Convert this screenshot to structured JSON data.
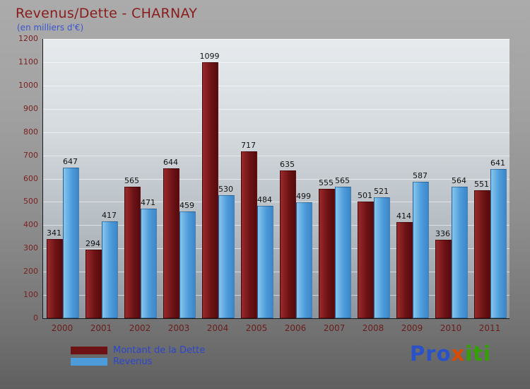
{
  "chart_data": {
    "type": "bar",
    "title": "Revenus/Dette - CHARNAY",
    "subtitle": "(en milliers d'€)",
    "categories": [
      "2000",
      "2001",
      "2002",
      "2003",
      "2004",
      "2005",
      "2006",
      "2007",
      "2008",
      "2009",
      "2010",
      "2011"
    ],
    "series": [
      {
        "name": "Montant de la Dette",
        "color_start": "#9a2a2c",
        "color_end": "#540b0e",
        "swatch": "#6e1315",
        "values": [
          341,
          294,
          565,
          644,
          1099,
          717,
          635,
          555,
          501,
          414,
          336,
          551
        ]
      },
      {
        "name": "Revenus",
        "color_start": "#85c6ef",
        "color_end": "#3b86c9",
        "swatch": "#4e9bd9",
        "values": [
          647,
          417,
          471,
          459,
          530,
          484,
          499,
          565,
          521,
          587,
          564,
          641
        ]
      }
    ],
    "xlabel": "",
    "ylabel": "",
    "ylim": [
      0,
      1200
    ],
    "ytick_step": 100,
    "grid": true,
    "legend_position": "bottom-left"
  },
  "logo": {
    "letters": [
      {
        "ch": "P",
        "color": "#2a52c8"
      },
      {
        "ch": "r",
        "color": "#2a52c8"
      },
      {
        "ch": "o",
        "color": "#2a52c8"
      },
      {
        "ch": "x",
        "color": "#d84b00"
      },
      {
        "ch": "i",
        "color": "#35a004"
      },
      {
        "ch": "t",
        "color": "#35a004"
      },
      {
        "ch": "i",
        "color": "#35a004"
      }
    ]
  }
}
